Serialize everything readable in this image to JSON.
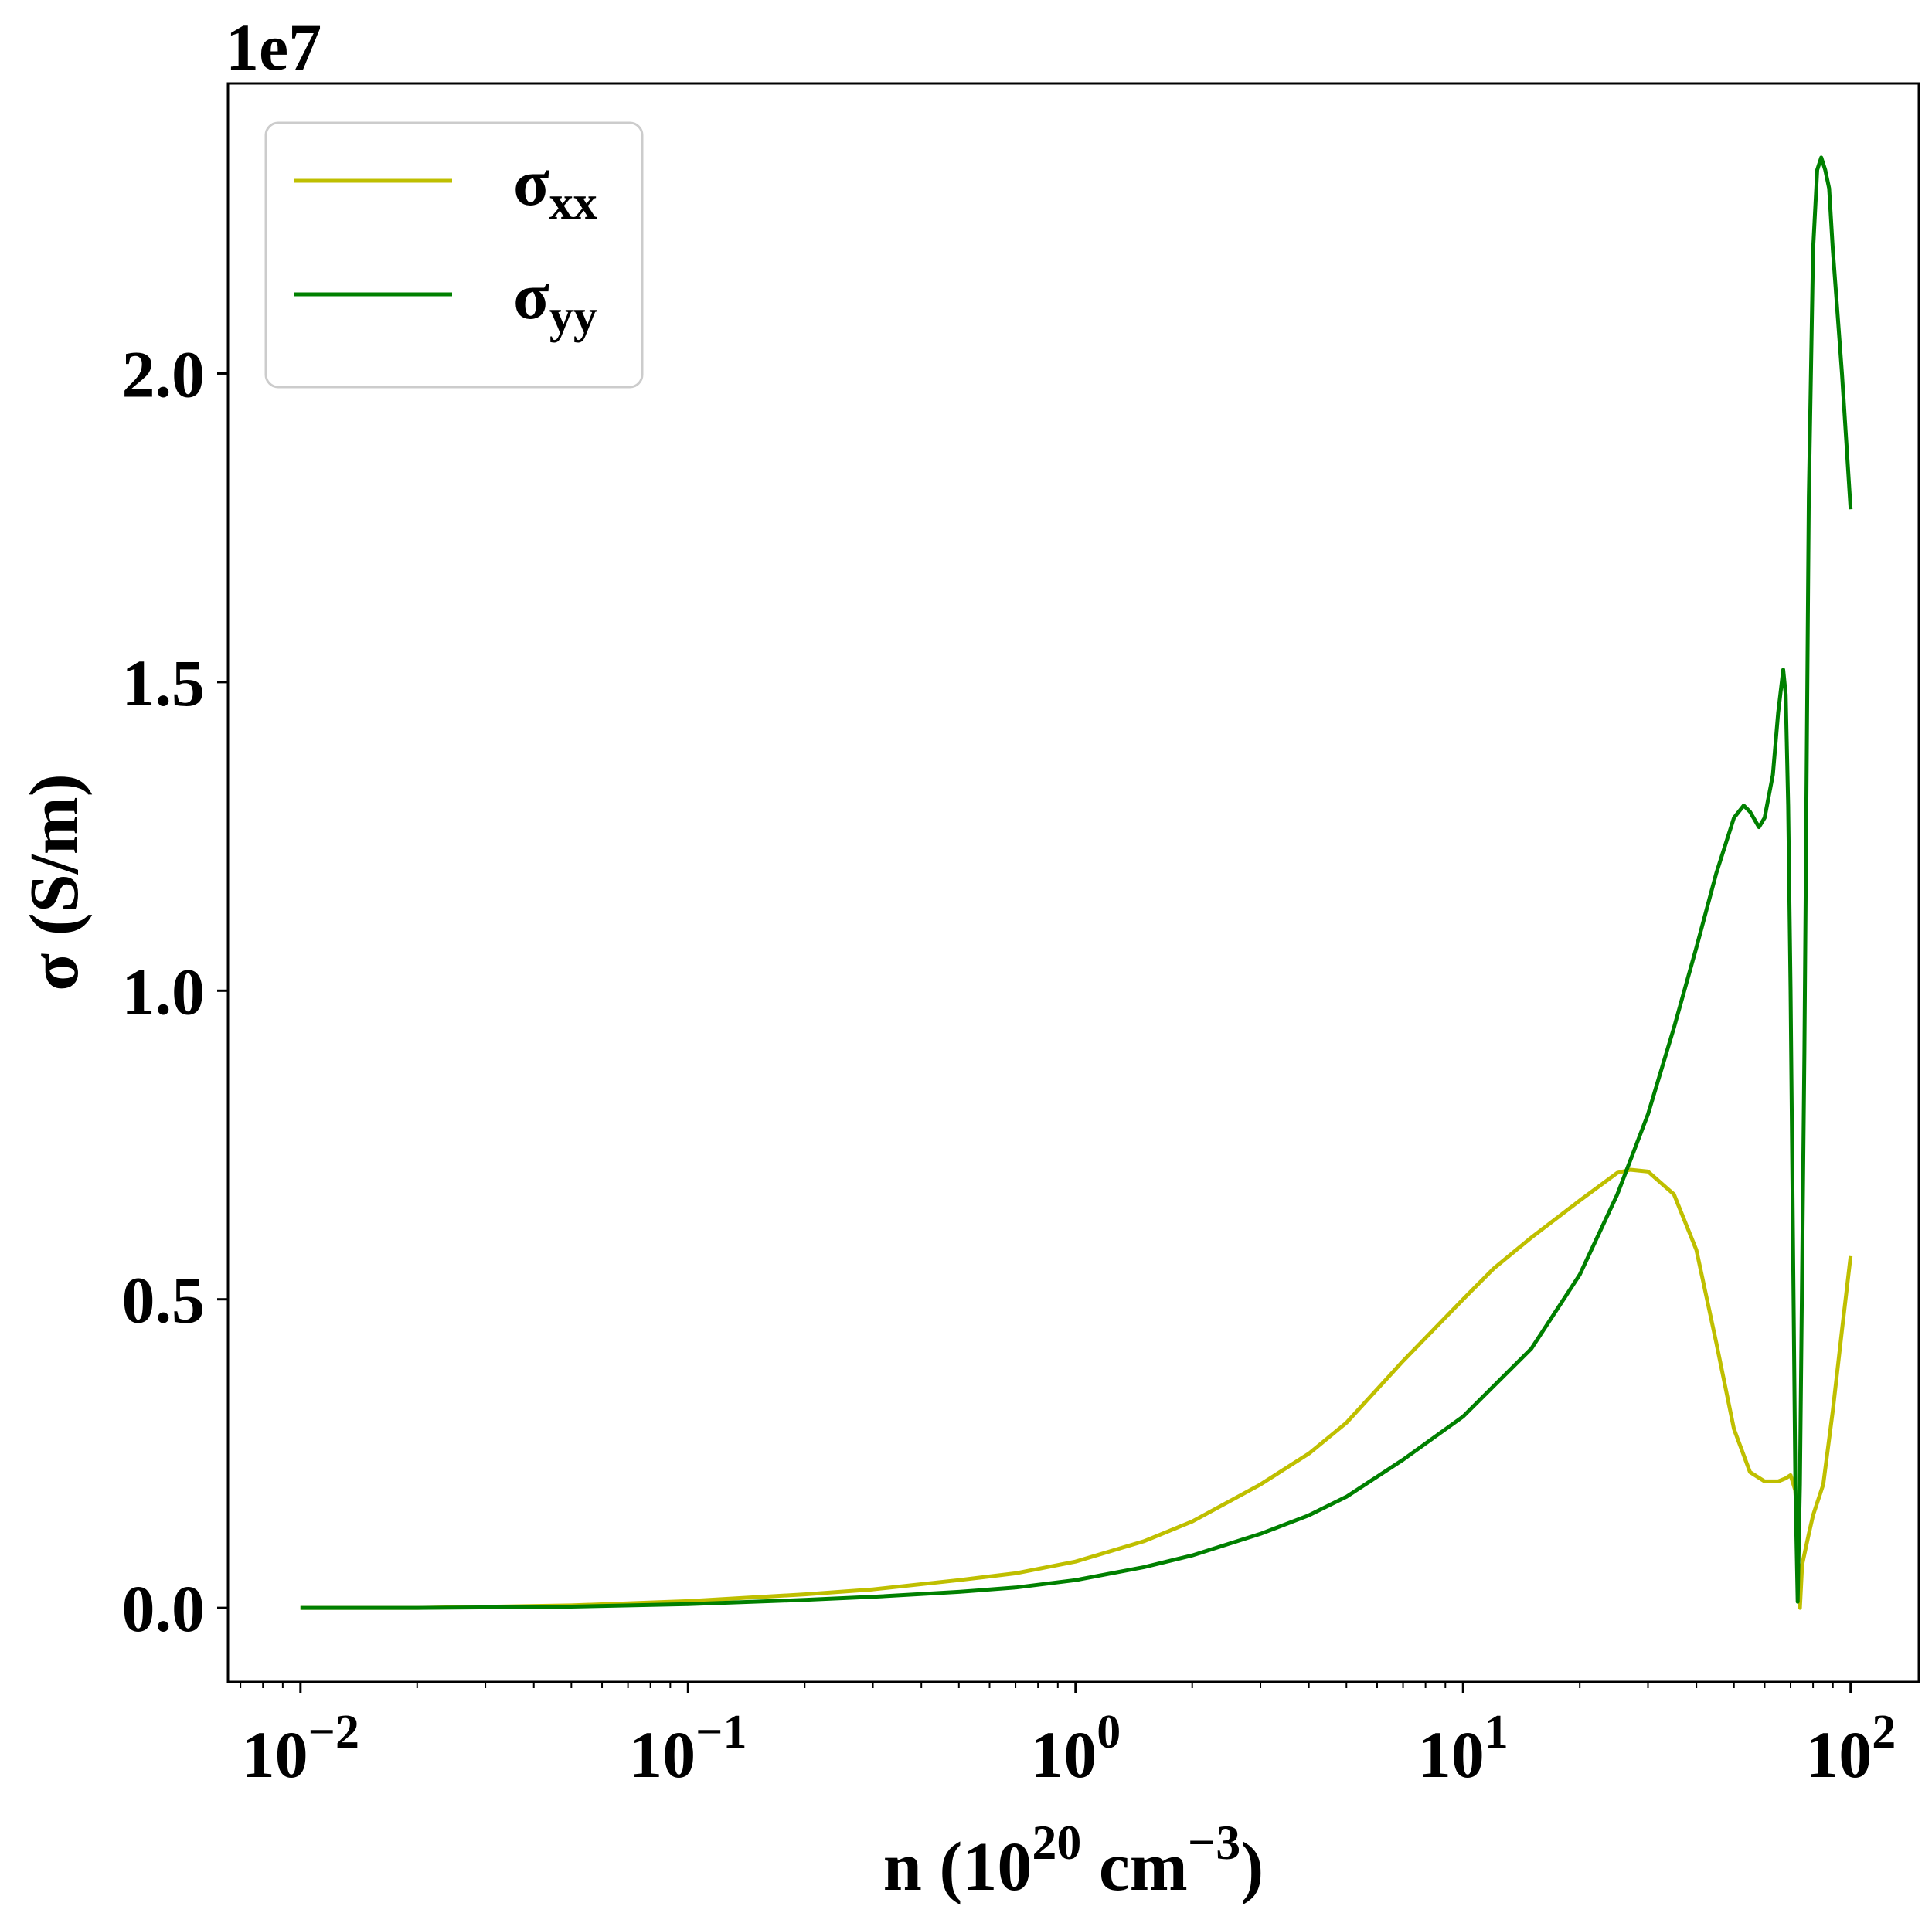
{
  "chart_data": {
    "type": "line",
    "scale_label": "1e7",
    "xlabel": {
      "main": "n (10",
      "sup1": "20",
      "mid": " cm",
      "sup2": "−3",
      "end": ")"
    },
    "ylabel": "σ (S/m)",
    "x_scale": "log",
    "xlim": [
      0.0065,
      150
    ],
    "ylim": [
      -0.12,
      2.47
    ],
    "x_ticks": [
      {
        "value": 0.01,
        "base": "10",
        "exp": "−2"
      },
      {
        "value": 0.1,
        "base": "10",
        "exp": "−1"
      },
      {
        "value": 1,
        "base": "10",
        "exp": "0"
      },
      {
        "value": 10,
        "base": "10",
        "exp": "1"
      },
      {
        "value": 100,
        "base": "10",
        "exp": "2"
      }
    ],
    "y_ticks": [
      {
        "value": 0.0,
        "label": "0.0"
      },
      {
        "value": 0.5,
        "label": "0.5"
      },
      {
        "value": 1.0,
        "label": "1.0"
      },
      {
        "value": 1.5,
        "label": "1.5"
      },
      {
        "value": 2.0,
        "label": "2.0"
      }
    ],
    "grid": false,
    "legend_position": "top-left",
    "series": [
      {
        "name": "σ",
        "subscript": "xx",
        "color": "#bfbf00",
        "x": [
          0.01,
          0.02,
          0.05,
          0.1,
          0.2,
          0.3,
          0.5,
          0.7,
          1,
          1.5,
          2,
          3,
          4,
          5,
          7,
          10,
          12,
          15,
          20,
          25,
          27,
          30,
          35,
          40,
          45,
          50,
          55,
          60,
          65,
          68,
          70,
          72,
          73,
          74,
          75,
          78,
          80,
          85,
          90,
          95,
          100
        ],
        "y": [
          0.0,
          0.0,
          0.004,
          0.011,
          0.022,
          0.03,
          0.045,
          0.056,
          0.075,
          0.108,
          0.14,
          0.2,
          0.25,
          0.3,
          0.4,
          0.5,
          0.55,
          0.6,
          0.66,
          0.705,
          0.71,
          0.707,
          0.67,
          0.58,
          0.43,
          0.29,
          0.22,
          0.205,
          0.205,
          0.21,
          0.215,
          0.19,
          0.1,
          0.0,
          0.07,
          0.12,
          0.15,
          0.2,
          0.32,
          0.45,
          0.57
        ]
      },
      {
        "name": "σ",
        "subscript": "yy",
        "color": "#008000",
        "x": [
          0.01,
          0.02,
          0.05,
          0.1,
          0.2,
          0.3,
          0.5,
          0.7,
          1,
          1.5,
          2,
          3,
          4,
          5,
          7,
          10,
          15,
          20,
          25,
          30,
          35,
          40,
          45,
          50,
          53,
          55,
          58,
          60,
          63,
          65,
          67,
          68,
          69,
          70,
          71,
          72,
          73,
          74,
          76,
          78,
          80,
          82,
          84,
          86,
          88,
          90,
          95,
          100
        ],
        "y": [
          0.0,
          0.0,
          0.002,
          0.006,
          0.013,
          0.018,
          0.026,
          0.033,
          0.045,
          0.066,
          0.085,
          0.12,
          0.15,
          0.18,
          0.24,
          0.31,
          0.42,
          0.54,
          0.67,
          0.8,
          0.94,
          1.07,
          1.19,
          1.28,
          1.3,
          1.29,
          1.265,
          1.28,
          1.35,
          1.45,
          1.52,
          1.48,
          1.3,
          1.0,
          0.6,
          0.2,
          0.01,
          0.2,
          0.9,
          1.8,
          2.2,
          2.33,
          2.35,
          2.33,
          2.3,
          2.2,
          2.0,
          1.78
        ]
      }
    ]
  }
}
